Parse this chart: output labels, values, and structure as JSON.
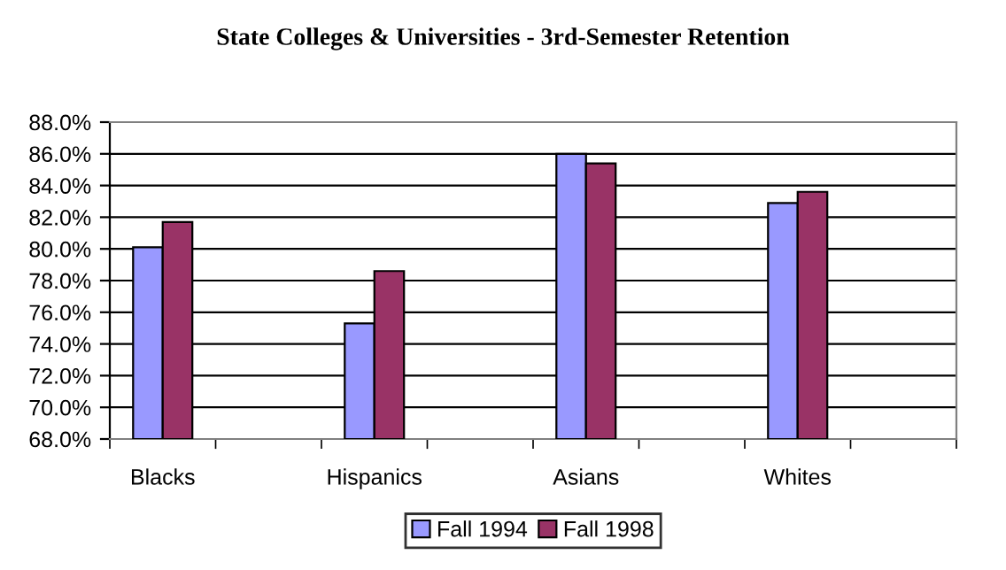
{
  "chart_data": {
    "type": "bar",
    "title": "State Colleges & Universities - 3rd-Semester Retention",
    "categories": [
      "Blacks",
      null,
      "Hispanics",
      null,
      "Asians",
      null,
      "Whites",
      null
    ],
    "series": [
      {
        "name": "Fall 1994",
        "color": "#9999ff",
        "values": [
          80.1,
          null,
          75.3,
          null,
          86.0,
          null,
          82.9,
          null
        ]
      },
      {
        "name": "Fall 1998",
        "color": "#993366",
        "values": [
          81.7,
          null,
          78.6,
          null,
          85.4,
          null,
          83.6,
          null
        ]
      }
    ],
    "ylim": [
      68,
      88
    ],
    "yticks": [
      {
        "value": 68,
        "label": "68.0%"
      },
      {
        "value": 70,
        "label": "70.0%"
      },
      {
        "value": 72,
        "label": "72.0%"
      },
      {
        "value": 74,
        "label": "74.0%"
      },
      {
        "value": 76,
        "label": "76.0%"
      },
      {
        "value": 78,
        "label": "78.0%"
      },
      {
        "value": 80,
        "label": "80.0%"
      },
      {
        "value": 82,
        "label": "82.0%"
      },
      {
        "value": 84,
        "label": "84.0%"
      },
      {
        "value": 86,
        "label": "86.0%"
      },
      {
        "value": 88,
        "label": "88.0%"
      }
    ],
    "grid": "y",
    "legend": "bottom"
  }
}
